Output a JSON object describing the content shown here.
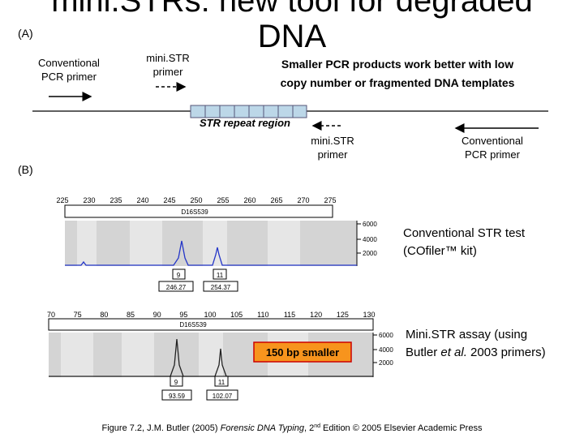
{
  "title": [
    "mini.STRs: new tool for degraded",
    "DNA"
  ],
  "label_a": "(A)",
  "label_b": "(B)",
  "conventional_primer_left": [
    "Conventional",
    "PCR primer"
  ],
  "ministr_primer_left": [
    "mini.STR",
    "primer"
  ],
  "headline": [
    "Smaller PCR products work better with low",
    "copy number or fragmented DNA templates"
  ],
  "str_region": "STR repeat region",
  "ministr_primer_right": [
    "mini.STR",
    "primer"
  ],
  "conventional_primer_right": [
    "Conventional",
    "PCR primer"
  ],
  "panel1": {
    "axis": [
      225,
      230,
      235,
      240,
      245,
      250,
      255,
      260,
      265,
      270,
      275
    ],
    "locus": "D16S539",
    "rfu": [
      6000,
      4000,
      2000
    ],
    "alleles": [
      "9",
      "11"
    ],
    "sizes": [
      "246.27",
      "254.37"
    ],
    "description": [
      "Conventional STR test",
      "(COfiler™ kit)"
    ]
  },
  "panel2": {
    "axis": [
      70,
      75,
      80,
      85,
      90,
      95,
      100,
      105,
      110,
      115,
      120,
      125,
      130
    ],
    "locus": "D16S539",
    "rfu": [
      6000,
      4000,
      2000
    ],
    "alleles": [
      "9",
      "11"
    ],
    "sizes": [
      "93.59",
      "102.07"
    ],
    "callout": "150 bp smaller",
    "description": [
      "Mini.STR assay (using",
      "Butler ",
      "et al.",
      " 2003 primers)"
    ]
  },
  "caption": [
    "Figure 7.2, J.M. Butler (2005) ",
    "Forensic DNA Typing",
    ", 2",
    "nd",
    " Edition © 2005 Elsevier Academic Press"
  ]
}
